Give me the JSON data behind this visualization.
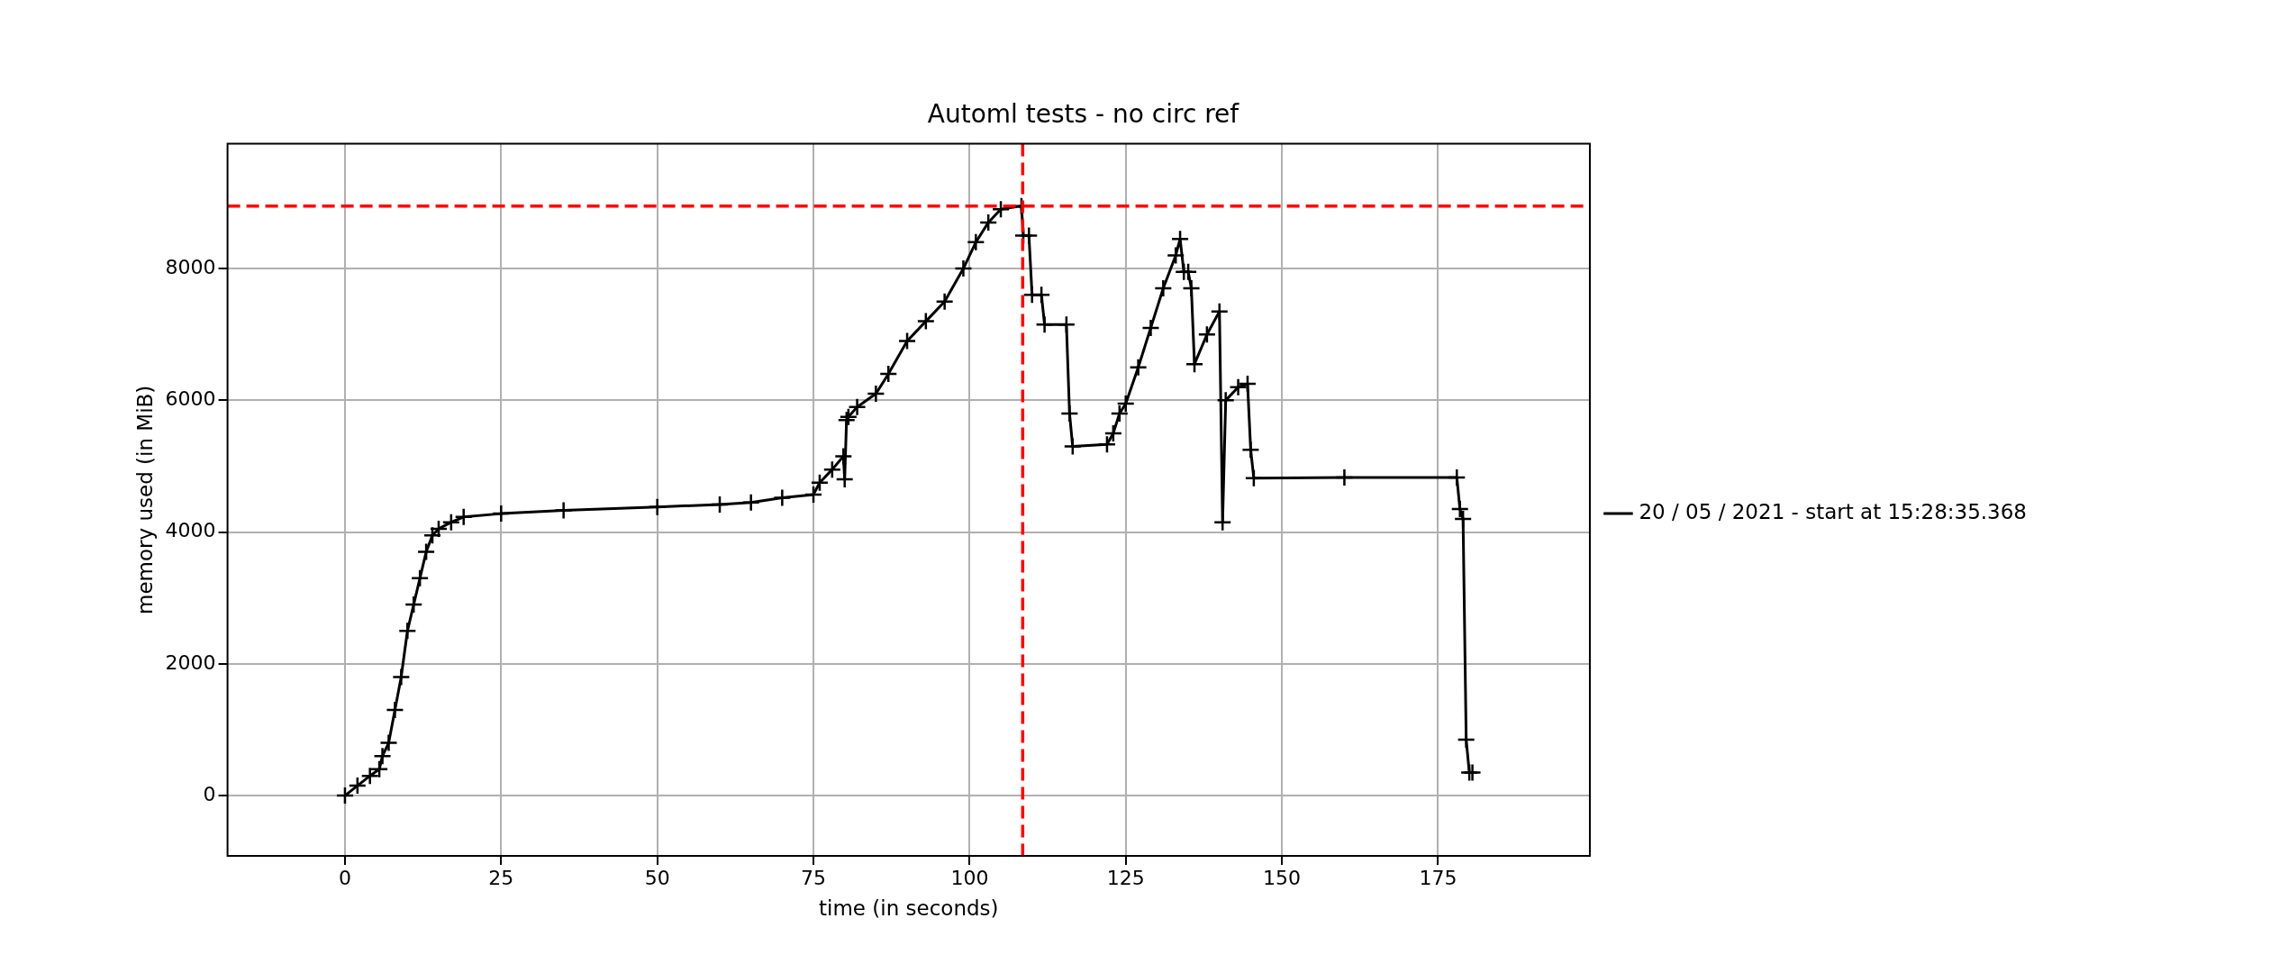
{
  "chart_data": {
    "type": "line",
    "title": "Automl tests - no circ ref",
    "xlabel": "time (in seconds)",
    "ylabel": "memory used (in MiB)",
    "series": [
      {
        "name": "20 / 05 / 2021 - start at 15:28:35.368",
        "color": "#000000",
        "x": [
          0,
          2,
          4,
          5.5,
          6,
          7,
          8,
          9,
          10,
          11,
          12,
          13,
          14,
          15,
          17,
          19,
          25,
          35,
          50,
          60,
          65,
          70,
          75,
          76,
          78,
          79.8,
          80,
          80.3,
          80.6,
          82,
          85,
          87,
          90,
          93,
          96,
          99,
          101,
          103,
          105,
          108.3,
          108.6,
          109.5,
          110,
          111.5,
          112,
          115.5,
          116,
          116.5,
          122,
          123,
          124,
          125,
          127,
          129,
          131,
          133,
          133.7,
          134.3,
          135,
          135.5,
          136,
          138,
          140,
          140.5,
          141,
          143,
          144.5,
          145,
          145.5,
          160,
          178,
          178.5,
          179,
          179.5,
          180,
          180.5
        ],
        "values": [
          0,
          150,
          300,
          400,
          600,
          800,
          1300,
          1800,
          2500,
          2900,
          3300,
          3700,
          3950,
          4050,
          4150,
          4230,
          4280,
          4330,
          4380,
          4420,
          4450,
          4520,
          4570,
          4750,
          4950,
          5150,
          4800,
          5700,
          5750,
          5900,
          6100,
          6400,
          6900,
          7200,
          7500,
          8000,
          8400,
          8700,
          8900,
          8950,
          8500,
          8500,
          7600,
          7600,
          7150,
          7150,
          5800,
          5300,
          5330,
          5500,
          5800,
          5950,
          6500,
          7100,
          7700,
          8200,
          8450,
          7950,
          7950,
          7700,
          6550,
          7000,
          7350,
          4150,
          6000,
          6200,
          6250,
          5250,
          4820,
          4830,
          4830,
          4350,
          4200,
          850,
          350,
          350
        ]
      }
    ],
    "xlim": [
      -18.8,
      199.3
    ],
    "xticks": [
      0,
      25,
      50,
      75,
      100,
      125,
      150,
      175
    ],
    "ylim": [
      -915,
      9894
    ],
    "yticks": [
      0,
      2000,
      4000,
      6000,
      8000
    ],
    "ref_lines": [
      {
        "axis": "y",
        "value": 8950,
        "color": "#ff0000",
        "line_style": "dashed"
      },
      {
        "axis": "x",
        "value": 108.5,
        "color": "#ff0000",
        "line_style": "dashed"
      }
    ],
    "grid": true,
    "legend": "right",
    "marker": "cross",
    "line_style": "solid"
  }
}
